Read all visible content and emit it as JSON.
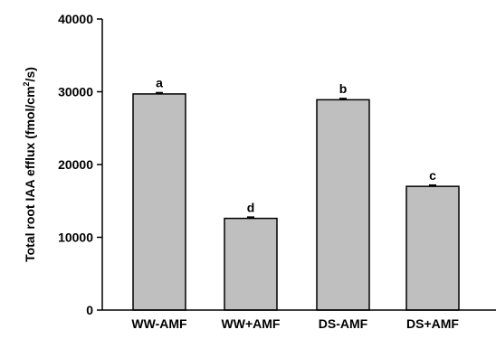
{
  "chart_data": {
    "type": "bar",
    "title": "",
    "xlabel": "",
    "ylabel": {
      "prefix": "Total root IAA efflux (fmol/cm",
      "superscript": "2",
      "suffix": "/s)"
    },
    "ylim": [
      0,
      40000
    ],
    "yticks": [
      0,
      10000,
      20000,
      30000,
      40000
    ],
    "categories": [
      "WW-AMF",
      "WW+AMF",
      "DS-AMF",
      "DS+AMF"
    ],
    "values": [
      29700,
      12600,
      28900,
      17000
    ],
    "errors": [
      150,
      150,
      150,
      150
    ],
    "significance_letters": [
      "a",
      "d",
      "b",
      "c"
    ],
    "bar_color": "#bfbfbf",
    "bar_edge_color": "#000000",
    "grid": false,
    "legend": "none"
  }
}
